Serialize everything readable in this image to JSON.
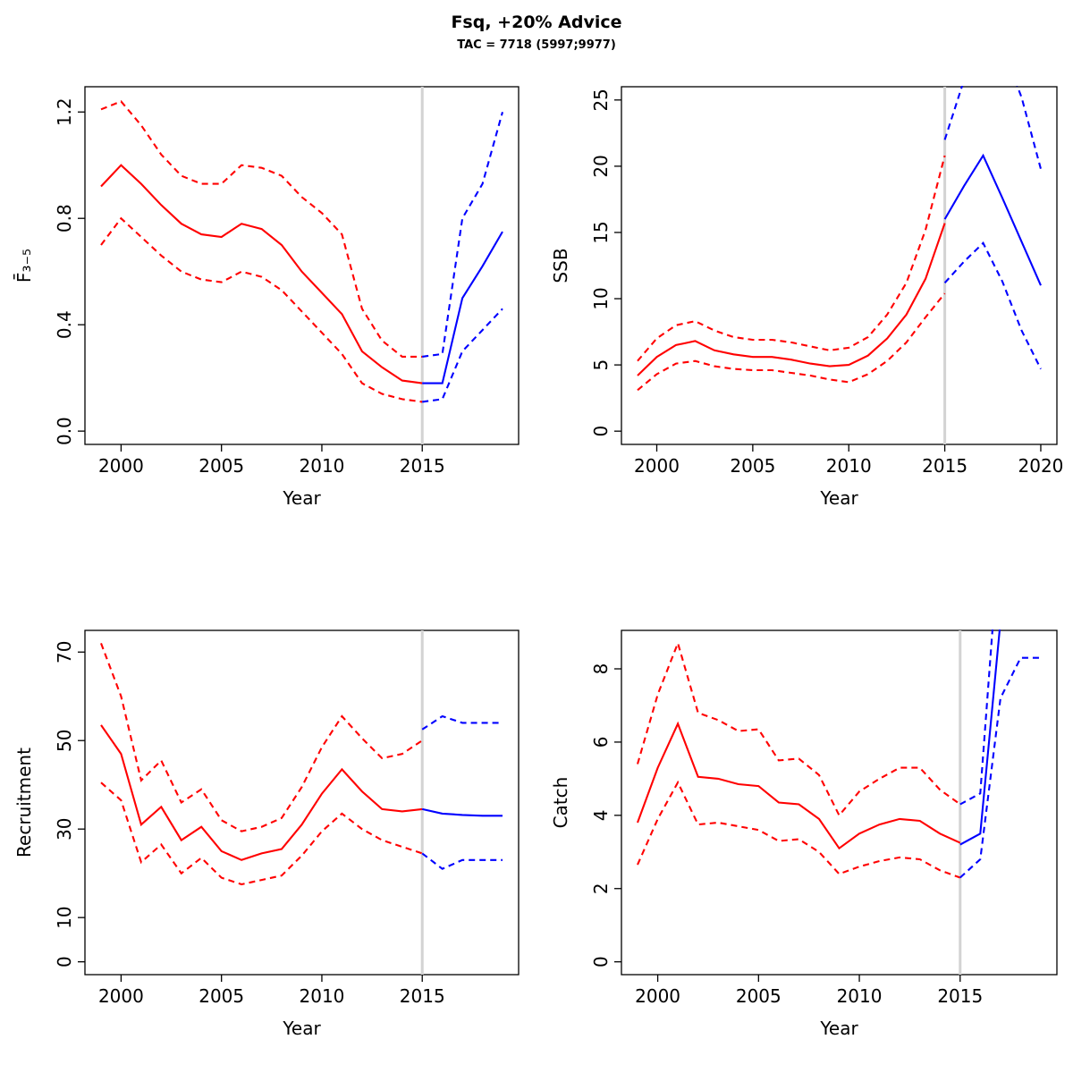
{
  "title": "Fsq, +20% Advice",
  "subtitle": "TAC = 7718 (5997;9977)",
  "colors": {
    "historical": "#FF0000",
    "forecast": "#0000FF",
    "vline": "#D3D3D3",
    "axis": "#000000"
  },
  "chart_data": [
    {
      "name": "fbar",
      "type": "line",
      "xlabel": "Year",
      "ylabel": "F̄₃₋₅",
      "xlim": [
        1998.2,
        2019.8
      ],
      "ylim": [
        -0.05,
        1.295
      ],
      "xticks": [
        2000,
        2005,
        2010,
        2015
      ],
      "xtick_labels": [
        "2000",
        "2005",
        "2010",
        "2015"
      ],
      "yticks": [
        0.0,
        0.4,
        0.8,
        1.2
      ],
      "ytick_labels": [
        "0.0",
        "0.4",
        "0.8",
        "1.2"
      ],
      "vline_x": 2015,
      "series": [
        {
          "name": "historical-median",
          "color": "#FF0000",
          "style": "solid",
          "x": [
            1999,
            2000,
            2001,
            2002,
            2003,
            2004,
            2005,
            2006,
            2007,
            2008,
            2009,
            2010,
            2011,
            2012,
            2013,
            2014,
            2015
          ],
          "y": [
            0.92,
            1.0,
            0.93,
            0.85,
            0.78,
            0.74,
            0.73,
            0.78,
            0.76,
            0.7,
            0.6,
            0.52,
            0.44,
            0.3,
            0.24,
            0.19,
            0.18
          ]
        },
        {
          "name": "historical-upper-ci",
          "color": "#FF0000",
          "style": "dashed",
          "x": [
            1999,
            2000,
            2001,
            2002,
            2003,
            2004,
            2005,
            2006,
            2007,
            2008,
            2009,
            2010,
            2011,
            2012,
            2013,
            2014,
            2015
          ],
          "y": [
            1.21,
            1.24,
            1.15,
            1.04,
            0.96,
            0.93,
            0.93,
            1.0,
            0.99,
            0.96,
            0.88,
            0.82,
            0.74,
            0.46,
            0.34,
            0.28,
            0.28
          ]
        },
        {
          "name": "historical-lower-ci",
          "color": "#FF0000",
          "style": "dashed",
          "x": [
            1999,
            2000,
            2001,
            2002,
            2003,
            2004,
            2005,
            2006,
            2007,
            2008,
            2009,
            2010,
            2011,
            2012,
            2013,
            2014,
            2015
          ],
          "y": [
            0.7,
            0.8,
            0.73,
            0.66,
            0.6,
            0.57,
            0.56,
            0.6,
            0.58,
            0.53,
            0.45,
            0.37,
            0.29,
            0.18,
            0.14,
            0.12,
            0.11
          ]
        },
        {
          "name": "forecast-median",
          "color": "#0000FF",
          "style": "solid",
          "x": [
            2015,
            2016,
            2017,
            2018,
            2019
          ],
          "y": [
            0.18,
            0.18,
            0.5,
            0.62,
            0.75
          ]
        },
        {
          "name": "forecast-upper-ci",
          "color": "#0000FF",
          "style": "dashed",
          "x": [
            2015,
            2016,
            2017,
            2018,
            2019
          ],
          "y": [
            0.28,
            0.29,
            0.8,
            0.93,
            1.2
          ]
        },
        {
          "name": "forecast-lower-ci",
          "color": "#0000FF",
          "style": "dashed",
          "x": [
            2015,
            2016,
            2017,
            2018,
            2019
          ],
          "y": [
            0.11,
            0.12,
            0.3,
            0.38,
            0.46
          ]
        }
      ]
    },
    {
      "name": "ssb",
      "type": "line",
      "xlabel": "Year",
      "ylabel": "SSB",
      "xlim": [
        1998.16,
        2020.84
      ],
      "ylim": [
        -1.0,
        26.0
      ],
      "xticks": [
        2000,
        2005,
        2010,
        2015,
        2020
      ],
      "xtick_labels": [
        "2000",
        "2005",
        "2010",
        "2015",
        "2020"
      ],
      "yticks": [
        0,
        5,
        10,
        15,
        20,
        25
      ],
      "ytick_labels": [
        "0",
        "5",
        "10",
        "15",
        "20",
        "25"
      ],
      "vline_x": 2015,
      "series": [
        {
          "name": "historical-median",
          "color": "#FF0000",
          "style": "solid",
          "x": [
            1999,
            2000,
            2001,
            2002,
            2003,
            2004,
            2005,
            2006,
            2007,
            2008,
            2009,
            2010,
            2011,
            2012,
            2013,
            2014,
            2015
          ],
          "y": [
            4.2,
            5.6,
            6.5,
            6.8,
            6.1,
            5.8,
            5.6,
            5.6,
            5.4,
            5.1,
            4.9,
            5.0,
            5.7,
            7.0,
            8.8,
            11.5,
            15.7
          ]
        },
        {
          "name": "historical-upper-ci",
          "color": "#FF0000",
          "style": "dashed",
          "x": [
            1999,
            2000,
            2001,
            2002,
            2003,
            2004,
            2005,
            2006,
            2007,
            2008,
            2009,
            2010,
            2011,
            2012,
            2013,
            2014,
            2015
          ],
          "y": [
            5.3,
            7.0,
            8.0,
            8.3,
            7.6,
            7.1,
            6.9,
            6.9,
            6.7,
            6.4,
            6.1,
            6.3,
            7.1,
            8.8,
            11.2,
            15.2,
            20.8
          ]
        },
        {
          "name": "historical-lower-ci",
          "color": "#FF0000",
          "style": "dashed",
          "x": [
            1999,
            2000,
            2001,
            2002,
            2003,
            2004,
            2005,
            2006,
            2007,
            2008,
            2009,
            2010,
            2011,
            2012,
            2013,
            2014,
            2015
          ],
          "y": [
            3.1,
            4.3,
            5.1,
            5.3,
            4.9,
            4.7,
            4.6,
            4.6,
            4.4,
            4.2,
            3.9,
            3.7,
            4.3,
            5.3,
            6.7,
            8.6,
            10.4
          ]
        },
        {
          "name": "forecast-median",
          "color": "#0000FF",
          "style": "solid",
          "x": [
            2015,
            2016,
            2017,
            2018,
            2019,
            2020
          ],
          "y": [
            16.0,
            18.5,
            20.8,
            17.6,
            14.3,
            11.0
          ]
        },
        {
          "name": "forecast-upper-ci",
          "color": "#0000FF",
          "style": "dashed",
          "x": [
            2015,
            2016,
            2017,
            2018,
            2019,
            2020
          ],
          "y": [
            22.0,
            26.5,
            30.5,
            29.0,
            25.2,
            19.8
          ]
        },
        {
          "name": "forecast-lower-ci",
          "color": "#0000FF",
          "style": "dashed",
          "x": [
            2015,
            2016,
            2017,
            2018,
            2019,
            2020
          ],
          "y": [
            11.2,
            12.8,
            14.2,
            11.3,
            7.6,
            4.7
          ]
        }
      ]
    },
    {
      "name": "recruitment",
      "type": "line",
      "xlabel": "Year",
      "ylabel": "Recruitment",
      "xlim": [
        1998.2,
        2019.8
      ],
      "ylim": [
        -2.9,
        74.9
      ],
      "xticks": [
        2000,
        2005,
        2010,
        2015
      ],
      "xtick_labels": [
        "2000",
        "2005",
        "2010",
        "2015"
      ],
      "yticks": [
        0,
        10,
        30,
        50,
        70
      ],
      "ytick_labels": [
        "0",
        "10",
        "30",
        "50",
        "70"
      ],
      "vline_x": 2015,
      "series": [
        {
          "name": "historical-median",
          "color": "#FF0000",
          "style": "solid",
          "x": [
            1999,
            2000,
            2001,
            2002,
            2003,
            2004,
            2005,
            2006,
            2007,
            2008,
            2009,
            2010,
            2011,
            2012,
            2013,
            2014,
            2015
          ],
          "y": [
            53.5,
            47.0,
            31.0,
            35.0,
            27.5,
            30.5,
            25.0,
            23.0,
            24.5,
            25.5,
            31.0,
            38.0,
            43.5,
            38.5,
            34.5,
            34.0,
            34.5
          ]
        },
        {
          "name": "historical-upper-ci",
          "color": "#FF0000",
          "style": "dashed",
          "x": [
            1999,
            2000,
            2001,
            2002,
            2003,
            2004,
            2005,
            2006,
            2007,
            2008,
            2009,
            2010,
            2011,
            2012,
            2013,
            2014,
            2015
          ],
          "y": [
            72.0,
            60.0,
            41.0,
            45.5,
            36.0,
            39.0,
            32.0,
            29.5,
            30.5,
            32.5,
            39.5,
            48.5,
            55.5,
            50.5,
            46.0,
            47.0,
            50.0
          ]
        },
        {
          "name": "historical-lower-ci",
          "color": "#FF0000",
          "style": "dashed",
          "x": [
            1999,
            2000,
            2001,
            2002,
            2003,
            2004,
            2005,
            2006,
            2007,
            2008,
            2009,
            2010,
            2011,
            2012,
            2013,
            2014,
            2015
          ],
          "y": [
            40.5,
            36.5,
            22.5,
            26.5,
            20.0,
            23.5,
            19.0,
            17.5,
            18.5,
            19.5,
            24.0,
            29.5,
            33.5,
            30.0,
            27.5,
            26.0,
            24.5
          ]
        },
        {
          "name": "forecast-median",
          "color": "#0000FF",
          "style": "solid",
          "x": [
            2015,
            2016,
            2017,
            2018,
            2019
          ],
          "y": [
            34.5,
            33.5,
            33.2,
            33.0,
            33.0
          ]
        },
        {
          "name": "forecast-upper-ci",
          "color": "#0000FF",
          "style": "dashed",
          "x": [
            2015,
            2016,
            2017,
            2018,
            2019
          ],
          "y": [
            52.5,
            55.5,
            54.0,
            54.0,
            54.0
          ]
        },
        {
          "name": "forecast-lower-ci",
          "color": "#0000FF",
          "style": "dashed",
          "x": [
            2015,
            2016,
            2017,
            2018,
            2019
          ],
          "y": [
            24.5,
            21.0,
            23.0,
            23.0,
            23.0
          ]
        }
      ]
    },
    {
      "name": "catch",
      "type": "line",
      "xlabel": "Year",
      "ylabel": "Catch",
      "xlim": [
        1998.2,
        2019.8
      ],
      "ylim": [
        -0.35,
        9.05
      ],
      "xticks": [
        2000,
        2005,
        2010,
        2015
      ],
      "xtick_labels": [
        "2000",
        "2005",
        "2010",
        "2015"
      ],
      "yticks": [
        0,
        2,
        4,
        6,
        8
      ],
      "ytick_labels": [
        "0",
        "2",
        "4",
        "6",
        "8"
      ],
      "vline_x": 2015,
      "series": [
        {
          "name": "historical-median",
          "color": "#FF0000",
          "style": "solid",
          "x": [
            1999,
            2000,
            2001,
            2002,
            2003,
            2004,
            2005,
            2006,
            2007,
            2008,
            2009,
            2010,
            2011,
            2012,
            2013,
            2014,
            2015
          ],
          "y": [
            3.8,
            5.3,
            6.5,
            5.05,
            5.0,
            4.85,
            4.8,
            4.35,
            4.3,
            3.9,
            3.1,
            3.5,
            3.75,
            3.9,
            3.85,
            3.5,
            3.25
          ]
        },
        {
          "name": "historical-upper-ci",
          "color": "#FF0000",
          "style": "dashed",
          "x": [
            1999,
            2000,
            2001,
            2002,
            2003,
            2004,
            2005,
            2006,
            2007,
            2008,
            2009,
            2010,
            2011,
            2012,
            2013,
            2014,
            2015
          ],
          "y": [
            5.4,
            7.3,
            8.7,
            6.8,
            6.6,
            6.3,
            6.35,
            5.5,
            5.55,
            5.1,
            4.0,
            4.65,
            5.0,
            5.3,
            5.3,
            4.7,
            4.3
          ]
        },
        {
          "name": "historical-lower-ci",
          "color": "#FF0000",
          "style": "dashed",
          "x": [
            1999,
            2000,
            2001,
            2002,
            2003,
            2004,
            2005,
            2006,
            2007,
            2008,
            2009,
            2010,
            2011,
            2012,
            2013,
            2014,
            2015
          ],
          "y": [
            2.65,
            3.9,
            4.9,
            3.75,
            3.8,
            3.7,
            3.6,
            3.3,
            3.35,
            3.0,
            2.4,
            2.6,
            2.75,
            2.85,
            2.8,
            2.5,
            2.3
          ]
        },
        {
          "name": "forecast-median",
          "color": "#0000FF",
          "style": "solid",
          "x": [
            2015,
            2016,
            2017,
            2018,
            2019
          ],
          "y": [
            3.2,
            3.5,
            9.3,
            9.3,
            9.3
          ]
        },
        {
          "name": "forecast-upper-ci",
          "color": "#0000FF",
          "style": "dashed",
          "x": [
            2015,
            2016,
            2017,
            2018,
            2019
          ],
          "y": [
            4.3,
            4.6,
            12.0,
            12.0,
            12.0
          ]
        },
        {
          "name": "forecast-lower-ci",
          "color": "#0000FF",
          "style": "dashed",
          "x": [
            2015,
            2016,
            2017,
            2018,
            2019
          ],
          "y": [
            2.3,
            2.8,
            7.2,
            8.3,
            8.3
          ]
        }
      ]
    }
  ]
}
